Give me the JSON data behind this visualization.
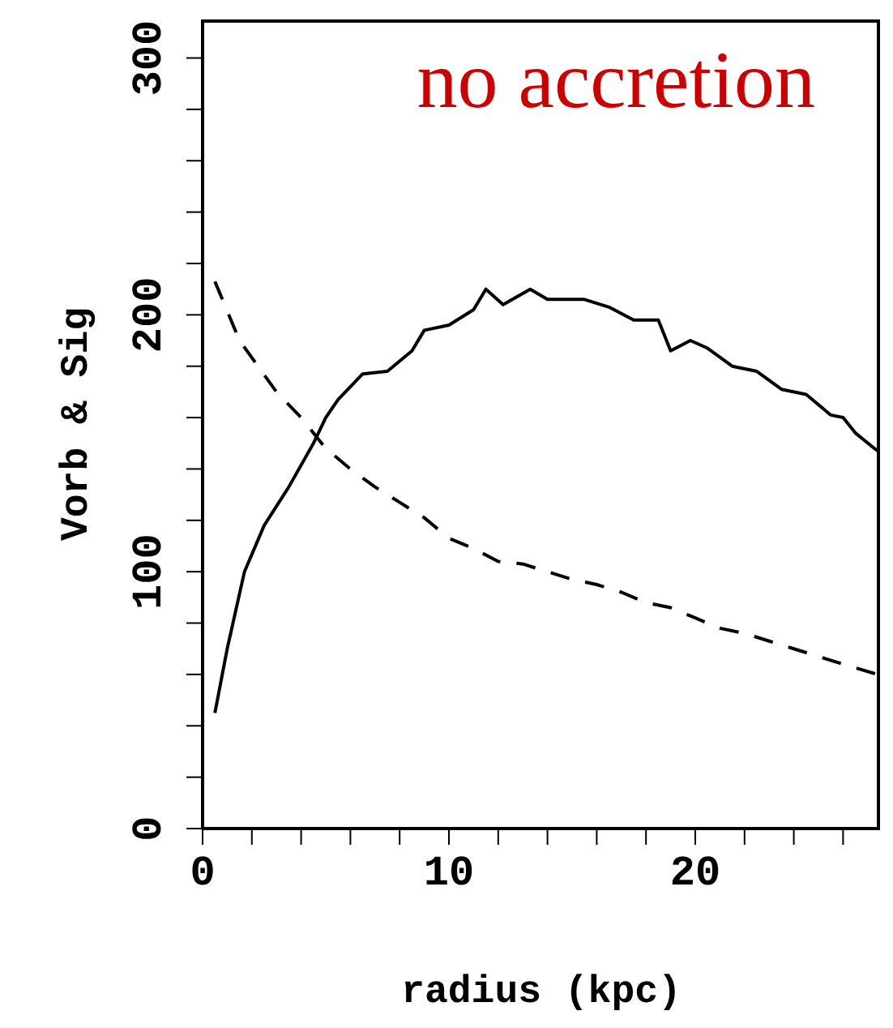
{
  "chart_data": {
    "type": "line",
    "xlabel": "radius (kpc)",
    "ylabel": "Vorb & Sig",
    "annotations": [
      "no accretion"
    ],
    "xlim": [
      0,
      27.5
    ],
    "ylim": [
      0,
      315
    ],
    "xticks": [
      0,
      {
        "value": 2,
        "label": null
      },
      {
        "value": 4,
        "label": null
      },
      {
        "value": 6,
        "label": null
      },
      {
        "value": 8,
        "label": null
      },
      10,
      {
        "value": 12,
        "label": null
      },
      {
        "value": 14,
        "label": null
      },
      {
        "value": 16,
        "label": null
      },
      {
        "value": 18,
        "label": null
      },
      20,
      {
        "value": 22,
        "label": null
      },
      {
        "value": 24,
        "label": null
      },
      {
        "value": 26,
        "label": null
      }
    ],
    "yticks": [
      0,
      {
        "value": 20,
        "label": null
      },
      {
        "value": 40,
        "label": null
      },
      {
        "value": 60,
        "label": null
      },
      {
        "value": 80,
        "label": null
      },
      100,
      {
        "value": 120,
        "label": null
      },
      {
        "value": 140,
        "label": null
      },
      {
        "value": 160,
        "label": null
      },
      {
        "value": 180,
        "label": null
      },
      200,
      {
        "value": 220,
        "label": null
      },
      {
        "value": 240,
        "label": null
      },
      {
        "value": 260,
        "label": null
      },
      {
        "value": 280,
        "label": null
      },
      300
    ],
    "marker": "none",
    "series": [
      {
        "color": "#000000",
        "line_style": "solid",
        "x": [
          0.5,
          1,
          1.7,
          2.5,
          3.5,
          4.5,
          5,
          5.5,
          6.5,
          7.5,
          8.5,
          9,
          10,
          11,
          11.5,
          12.2,
          13.3,
          14,
          15.5,
          16.5,
          17.5,
          18.5,
          19,
          19.8,
          20.5,
          21.5,
          22.5,
          23.5,
          24.5,
          25.5,
          26,
          26.5,
          27.4
        ],
        "values": [
          45,
          70,
          100,
          118,
          133,
          150,
          160,
          167,
          177,
          178,
          186,
          194,
          196,
          202,
          210,
          204,
          210,
          206,
          206,
          203,
          198,
          198,
          186,
          190,
          187,
          180,
          178,
          171,
          169,
          161,
          160,
          154,
          147
        ]
      },
      {
        "color": "#000000",
        "line_style": "dashed",
        "x": [
          0.5,
          1.5,
          3,
          4,
          5,
          6,
          7,
          8,
          9,
          10,
          11,
          12,
          13,
          14,
          15,
          16,
          17,
          18,
          19,
          20,
          21,
          22,
          23,
          24,
          25,
          26,
          27.4
        ],
        "values": [
          213,
          190,
          170,
          160,
          148,
          140,
          133,
          127,
          121,
          113,
          109,
          104,
          103,
          100,
          97,
          95,
          92,
          88,
          86,
          82,
          78,
          76,
          73,
          70,
          67,
          64,
          60
        ]
      }
    ]
  }
}
